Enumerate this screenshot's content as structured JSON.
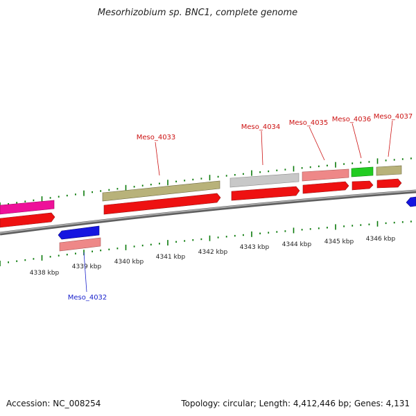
{
  "title": "Mesorhizobium sp. BNC1, complete genome",
  "footer": {
    "accession": "Accession: NC_008254",
    "topology": "Topology: circular; Length: 4,412,446 bp; Genes: 4,131"
  },
  "ticks": [
    "4338 kbp",
    "4339 kbp",
    "4340 kbp",
    "4341 kbp",
    "4342 kbp",
    "4343 kbp",
    "4344 kbp",
    "4345 kbp",
    "4346 kbp"
  ],
  "genes": [
    {
      "name": "Meso_4032",
      "color": "#1a22cc"
    },
    {
      "name": "Meso_4033",
      "color": "#cc1111"
    },
    {
      "name": "Meso_4034",
      "color": "#cc1111"
    },
    {
      "name": "Meso_4035",
      "color": "#cc1111"
    },
    {
      "name": "Meso_4036",
      "color": "#cc1111"
    },
    {
      "name": "Meso_4037",
      "color": "#cc1111"
    }
  ],
  "colors": {
    "cds": "#ee1111",
    "forward_strand_feature": "#b8b27a",
    "reverse_strand_feature": "#1515e0",
    "salmon": "#ee8888",
    "grey": "#c8c8c8",
    "green": "#22cc22",
    "magenta": "#ee1199",
    "tick": "#0a7a0a",
    "backbone": "#8a8a8a"
  }
}
